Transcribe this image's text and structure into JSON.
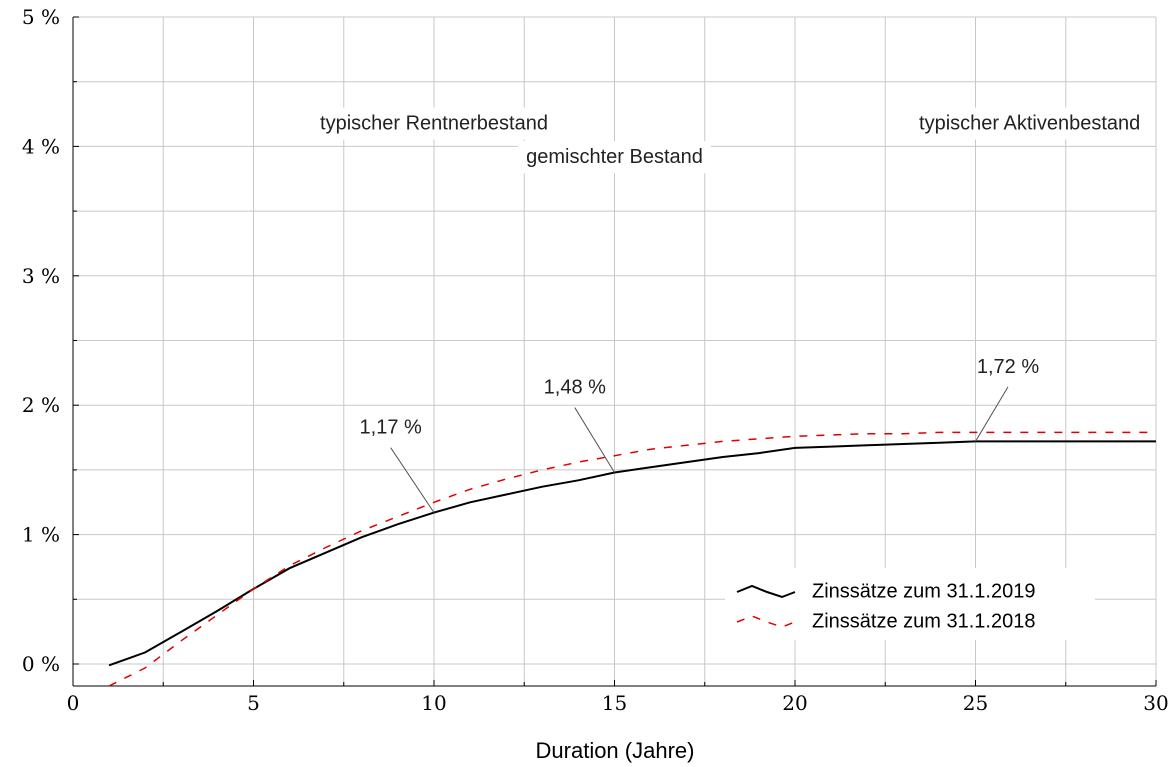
{
  "chart_data": {
    "type": "line",
    "xlabel": "Duration (Jahre)",
    "ylabel": "",
    "xlim": [
      0,
      30
    ],
    "ylim": [
      -0.17,
      5
    ],
    "x_ticks": [
      0,
      5,
      10,
      15,
      20,
      25,
      30
    ],
    "x_tick_labels": [
      "0",
      "5",
      "10",
      "15",
      "20",
      "25",
      "30"
    ],
    "y_ticks": [
      0,
      1,
      2,
      3,
      4,
      5
    ],
    "y_tick_labels": [
      "0 %",
      "1 %",
      "2 %",
      "3 %",
      "4 %",
      "5 %"
    ],
    "grid": true,
    "legend_position": "lower-right",
    "series": [
      {
        "name": "Zinssätze zum 31.1.2019",
        "color": "#000000",
        "style": "solid",
        "x": [
          1,
          2,
          3,
          4,
          5,
          6,
          7,
          8,
          9,
          10,
          11,
          12,
          13,
          14,
          15,
          16,
          17,
          18,
          19,
          20,
          21,
          22,
          23,
          24,
          25,
          26,
          27,
          28,
          29,
          30
        ],
        "values": [
          -0.01,
          0.09,
          0.25,
          0.41,
          0.58,
          0.74,
          0.86,
          0.98,
          1.08,
          1.17,
          1.25,
          1.31,
          1.37,
          1.42,
          1.48,
          1.52,
          1.56,
          1.6,
          1.63,
          1.67,
          1.68,
          1.69,
          1.7,
          1.71,
          1.72,
          1.72,
          1.72,
          1.72,
          1.72,
          1.72
        ]
      },
      {
        "name": "Zinssätze zum 31.1.2018",
        "color": "#e00000",
        "style": "dashed",
        "x": [
          1,
          2,
          3,
          4,
          5,
          6,
          7,
          8,
          9,
          10,
          11,
          12,
          13,
          14,
          15,
          16,
          17,
          18,
          19,
          20,
          21,
          22,
          23,
          24,
          25,
          26,
          27,
          28,
          29,
          30
        ],
        "values": [
          -0.17,
          -0.03,
          0.18,
          0.38,
          0.58,
          0.76,
          0.9,
          1.03,
          1.14,
          1.25,
          1.35,
          1.43,
          1.5,
          1.56,
          1.61,
          1.66,
          1.69,
          1.72,
          1.74,
          1.76,
          1.77,
          1.78,
          1.78,
          1.79,
          1.79,
          1.79,
          1.79,
          1.79,
          1.79,
          1.79
        ]
      }
    ],
    "region_labels": [
      {
        "text": "typischer Rentnerbestand",
        "x": 10,
        "y": 4.13
      },
      {
        "text": "gemischter Bestand",
        "x": 15,
        "y": 3.87
      },
      {
        "text": "typischer Aktivenbestand",
        "x": 26.5,
        "y": 4.13
      }
    ],
    "annotations": [
      {
        "text": "1,17 %",
        "x": 10,
        "y": 1.17,
        "label_x": 8.8,
        "label_y": 1.78
      },
      {
        "text": "1,48 %",
        "x": 15,
        "y": 1.48,
        "label_x": 13.9,
        "label_y": 2.09
      },
      {
        "text": "1,72 %",
        "x": 25,
        "y": 1.72,
        "label_x": 25.9,
        "label_y": 2.25
      }
    ]
  }
}
